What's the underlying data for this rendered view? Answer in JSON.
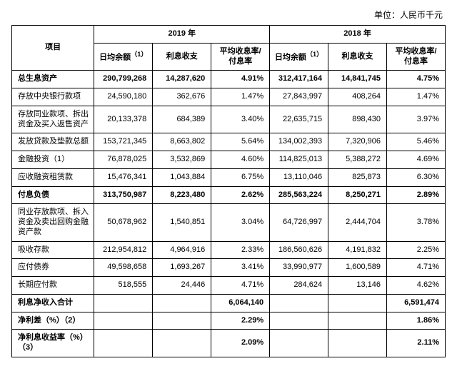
{
  "unit_line": "单位：人民币千元",
  "headers": {
    "item": "项目",
    "y2019": "2019 年",
    "y2018": "2018 年",
    "avg_balance": "日均余额",
    "sup": "（1）",
    "interest": "利息收支",
    "rate": "平均收息率/付息率"
  },
  "rows": [
    {
      "bold": true,
      "label": "总生息资产",
      "a": "290,799,268",
      "b": "14,287,620",
      "c": "4.91%",
      "d": "312,417,164",
      "e": "14,841,745",
      "f": "4.75%"
    },
    {
      "bold": false,
      "label": "存放中央银行款项",
      "a": "24,590,180",
      "b": "362,676",
      "c": "1.47%",
      "d": "27,843,997",
      "e": "408,264",
      "f": "1.47%"
    },
    {
      "bold": false,
      "label": "存放同业款项、拆出资金及买入返售资产",
      "a": "20,133,378",
      "b": "684,389",
      "c": "3.40%",
      "d": "22,635,715",
      "e": "898,430",
      "f": "3.97%"
    },
    {
      "bold": false,
      "label": "发放贷款及垫款总额",
      "a": "153,721,345",
      "b": "8,663,802",
      "c": "5.64%",
      "d": "134,002,393",
      "e": "7,320,906",
      "f": "5.46%"
    },
    {
      "bold": false,
      "label": "金融投资（1）",
      "a": "76,878,025",
      "b": "3,532,869",
      "c": "4.60%",
      "d": "114,825,013",
      "e": "5,388,272",
      "f": "4.69%"
    },
    {
      "bold": false,
      "label": "应收融资租赁款",
      "a": "15,476,341",
      "b": "1,043,884",
      "c": "6.75%",
      "d": "13,110,046",
      "e": "825,873",
      "f": "6.30%"
    },
    {
      "bold": true,
      "label": "付息负债",
      "a": "313,750,987",
      "b": "8,223,480",
      "c": "2.62%",
      "d": "285,563,224",
      "e": "8,250,271",
      "f": "2.89%"
    },
    {
      "bold": false,
      "label": "同业存放款项、拆入资金及卖出回购金融资产款",
      "a": "50,678,962",
      "b": "1,540,851",
      "c": "3.04%",
      "d": "64,726,997",
      "e": "2,444,704",
      "f": "3.78%"
    },
    {
      "bold": false,
      "label": "吸收存款",
      "a": "212,954,812",
      "b": "4,964,916",
      "c": "2.33%",
      "d": "186,560,626",
      "e": "4,191,832",
      "f": "2.25%"
    },
    {
      "bold": false,
      "label": "应付债券",
      "a": "49,598,658",
      "b": "1,693,267",
      "c": "3.41%",
      "d": "33,990,977",
      "e": "1,600,589",
      "f": "4.71%"
    },
    {
      "bold": false,
      "label": "长期应付款",
      "a": "518,555",
      "b": "24,446",
      "c": "4.71%",
      "d": "284,624",
      "e": "13,146",
      "f": "4.62%"
    }
  ],
  "summary": [
    {
      "label": "利息净收入合计",
      "c": "6,064,140",
      "f": "6,591,474"
    },
    {
      "label": "净利差（%）（2）",
      "c": "2.29%",
      "f": "1.86%"
    },
    {
      "label": "净利息收益率（%）（3）",
      "c": "2.09%",
      "f": "2.11%"
    }
  ]
}
